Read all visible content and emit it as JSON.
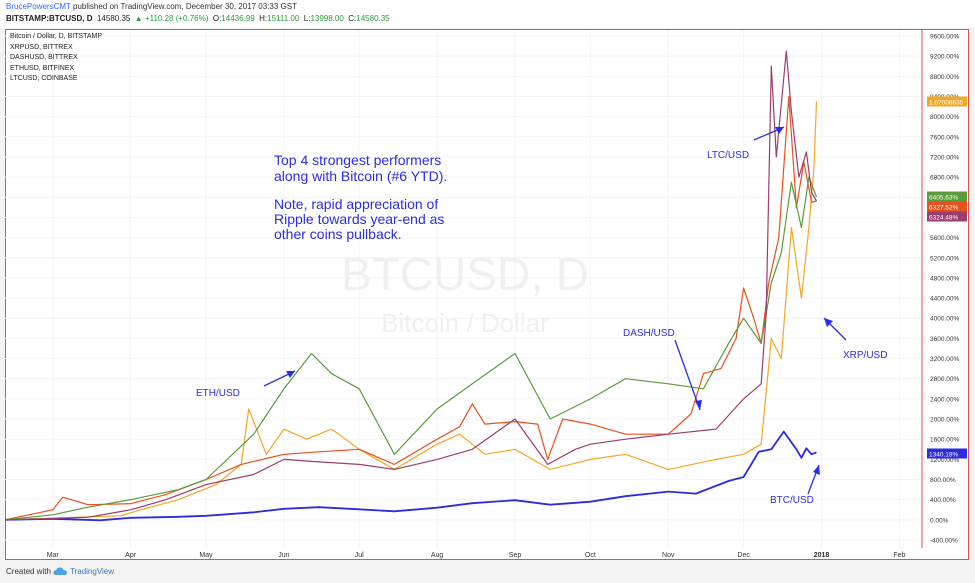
{
  "header": {
    "author": "BrucePowersCMT",
    "published": "published on TradingView.com, December 30, 2017 03:33 GST",
    "symbol": "BITSTAMP:BTCUSD, D",
    "last": "14580.35",
    "change": "▲ +110.28 (+0.76%)",
    "open_label": "O:",
    "open": "14436.99",
    "high_label": "H:",
    "high": "15111.00",
    "low_label": "L:",
    "low": "13998.00",
    "close_label": "C:",
    "close": "14580.35"
  },
  "legend": [
    "Bitcoin / Dollar, D, BITSTAMP",
    "XRPUSD, BITTREX",
    "DASHUSD, BITTREX",
    "ETHUSD, BITFINEX",
    "LTCUSD, COINBASE"
  ],
  "watermark": {
    "symbol": "BTCUSD, D",
    "name": "Bitcoin / Dollar"
  },
  "annotations": {
    "main_text": [
      "Top 4 strongest performers",
      "along with Bitcoin (#6 YTD).",
      "",
      "Note, rapid appreciation of",
      "Ripple towards year-end as",
      "other coins pullback."
    ],
    "eth": "ETH/USD",
    "dash": "DASH/USD",
    "ltc": "LTC/USD",
    "xrp": "XRP/USD",
    "btc": "BTC/USD"
  },
  "footer": {
    "created": "Created with",
    "brand": "TradingView"
  },
  "colors": {
    "btc": "#2b2be0",
    "xrp": "#f5a623",
    "dash": "#e8501c",
    "eth": "#5b9b3a",
    "ltc": "#9b3d6e",
    "annotation": "#2c2ce0"
  },
  "chart_data": {
    "type": "line",
    "title": "Bitcoin / Dollar, D, BITSTAMP",
    "xlabel": "",
    "ylabel": "",
    "ylim": [
      -400,
      9600
    ],
    "y_unit": "%",
    "y_ticks": [
      9600,
      9200,
      8800,
      8400,
      8000,
      7600,
      7200,
      6800,
      6400,
      6000,
      5600,
      5200,
      4800,
      4400,
      4000,
      3600,
      3200,
      2800,
      2400,
      2000,
      1600,
      1200,
      800,
      400,
      0,
      -400
    ],
    "y_tick_labels": [
      "9600.00%",
      "9200.00%",
      "8800.00%",
      "8400.00%",
      "8000.00%",
      "7600.00%",
      "7200.00%",
      "6800.00%",
      "6400.00%",
      "6000.00%",
      "5600.00%",
      "5200.00%",
      "4800.00%",
      "4400.00%",
      "4000.00%",
      "3600.00%",
      "3200.00%",
      "2800.00%",
      "2400.00%",
      "2000.00%",
      "1600.00%",
      "1200.00%",
      "800.00%",
      "400.00%",
      "0.00%",
      "-400.00%"
    ],
    "x_ticks": [
      {
        "label": "Mar",
        "date": "2017-03-01"
      },
      {
        "label": "Apr",
        "date": "2017-04-01"
      },
      {
        "label": "May",
        "date": "2017-05-01"
      },
      {
        "label": "Jun",
        "date": "2017-06-01"
      },
      {
        "label": "Jul",
        "date": "2017-07-01"
      },
      {
        "label": "Aug",
        "date": "2017-08-01"
      },
      {
        "label": "Sep",
        "date": "2017-09-01"
      },
      {
        "label": "Oct",
        "date": "2017-10-01"
      },
      {
        "label": "Nov",
        "date": "2017-11-01"
      },
      {
        "label": "Dec",
        "date": "2017-12-01"
      },
      {
        "label": "2018",
        "date": "2018-01-01"
      },
      {
        "label": "Feb",
        "date": "2018-02-01"
      }
    ],
    "x_range": [
      "2017-02-10",
      "2018-02-10"
    ],
    "value_labels": [
      {
        "series": "XRPUSD",
        "text": "1.07008635"
      },
      {
        "series": "ETHUSD",
        "text": "6405.63%"
      },
      {
        "series": "DASHUSD",
        "text": "6327.52%"
      },
      {
        "series": "LTCUSD",
        "text": "6324.48%"
      },
      {
        "series": "BTCUSD",
        "text": "1340.18%"
      }
    ],
    "series": [
      {
        "name": "BTCUSD",
        "color": "#2b2be0",
        "points": [
          [
            "2017-02-10",
            0
          ],
          [
            "2017-03-01",
            20
          ],
          [
            "2017-03-20",
            -10
          ],
          [
            "2017-04-01",
            40
          ],
          [
            "2017-04-20",
            60
          ],
          [
            "2017-05-01",
            80
          ],
          [
            "2017-05-20",
            150
          ],
          [
            "2017-06-01",
            220
          ],
          [
            "2017-06-15",
            250
          ],
          [
            "2017-07-01",
            210
          ],
          [
            "2017-07-15",
            170
          ],
          [
            "2017-08-01",
            240
          ],
          [
            "2017-08-15",
            330
          ],
          [
            "2017-09-01",
            390
          ],
          [
            "2017-09-15",
            300
          ],
          [
            "2017-10-01",
            360
          ],
          [
            "2017-10-15",
            470
          ],
          [
            "2017-11-01",
            560
          ],
          [
            "2017-11-12",
            520
          ],
          [
            "2017-11-25",
            770
          ],
          [
            "2017-12-01",
            850
          ],
          [
            "2017-12-07",
            1350
          ],
          [
            "2017-12-12",
            1400
          ],
          [
            "2017-12-17",
            1750
          ],
          [
            "2017-12-22",
            1400
          ],
          [
            "2017-12-24",
            1230
          ],
          [
            "2017-12-26",
            1420
          ],
          [
            "2017-12-28",
            1300
          ],
          [
            "2017-12-30",
            1340
          ]
        ]
      },
      {
        "name": "XRPUSD",
        "color": "#f5a623",
        "points": [
          [
            "2017-02-10",
            0
          ],
          [
            "2017-03-15",
            60
          ],
          [
            "2017-03-28",
            80
          ],
          [
            "2017-04-05",
            200
          ],
          [
            "2017-04-20",
            400
          ],
          [
            "2017-05-05",
            700
          ],
          [
            "2017-05-15",
            1100
          ],
          [
            "2017-05-18",
            2200
          ],
          [
            "2017-05-25",
            1300
          ],
          [
            "2017-06-01",
            1800
          ],
          [
            "2017-06-10",
            1600
          ],
          [
            "2017-06-20",
            1800
          ],
          [
            "2017-07-01",
            1400
          ],
          [
            "2017-07-15",
            1000
          ],
          [
            "2017-08-01",
            1500
          ],
          [
            "2017-08-10",
            1700
          ],
          [
            "2017-08-20",
            1300
          ],
          [
            "2017-09-01",
            1400
          ],
          [
            "2017-09-15",
            1000
          ],
          [
            "2017-10-01",
            1200
          ],
          [
            "2017-10-15",
            1300
          ],
          [
            "2017-11-01",
            1000
          ],
          [
            "2017-11-20",
            1200
          ],
          [
            "2017-12-01",
            1300
          ],
          [
            "2017-12-08",
            1500
          ],
          [
            "2017-12-12",
            3600
          ],
          [
            "2017-12-16",
            3200
          ],
          [
            "2017-12-20",
            5800
          ],
          [
            "2017-12-24",
            4400
          ],
          [
            "2017-12-27",
            5800
          ],
          [
            "2017-12-29",
            7000
          ],
          [
            "2017-12-30",
            8300
          ]
        ]
      },
      {
        "name": "DASHUSD",
        "color": "#e8501c",
        "points": [
          [
            "2017-02-10",
            0
          ],
          [
            "2017-03-01",
            200
          ],
          [
            "2017-03-05",
            450
          ],
          [
            "2017-03-15",
            300
          ],
          [
            "2017-04-01",
            320
          ],
          [
            "2017-04-15",
            500
          ],
          [
            "2017-05-01",
            800
          ],
          [
            "2017-05-15",
            1100
          ],
          [
            "2017-06-01",
            1300
          ],
          [
            "2017-06-15",
            1350
          ],
          [
            "2017-07-01",
            1400
          ],
          [
            "2017-07-15",
            1100
          ],
          [
            "2017-08-01",
            1600
          ],
          [
            "2017-08-10",
            1850
          ],
          [
            "2017-08-15",
            2300
          ],
          [
            "2017-08-20",
            1900
          ],
          [
            "2017-09-01",
            1950
          ],
          [
            "2017-09-10",
            1900
          ],
          [
            "2017-09-14",
            1200
          ],
          [
            "2017-09-20",
            2000
          ],
          [
            "2017-10-01",
            1900
          ],
          [
            "2017-10-15",
            1700
          ],
          [
            "2017-11-01",
            1700
          ],
          [
            "2017-11-10",
            2100
          ],
          [
            "2017-11-15",
            2900
          ],
          [
            "2017-11-22",
            3000
          ],
          [
            "2017-11-28",
            3600
          ],
          [
            "2017-12-01",
            4600
          ],
          [
            "2017-12-05",
            4000
          ],
          [
            "2017-12-08",
            3500
          ],
          [
            "2017-12-11",
            4700
          ],
          [
            "2017-12-15",
            5600
          ],
          [
            "2017-12-19",
            8400
          ],
          [
            "2017-12-22",
            6200
          ],
          [
            "2017-12-25",
            7100
          ],
          [
            "2017-12-28",
            6300
          ],
          [
            "2017-12-30",
            6327
          ]
        ]
      },
      {
        "name": "ETHUSD",
        "color": "#5b9b3a",
        "points": [
          [
            "2017-02-10",
            0
          ],
          [
            "2017-03-01",
            100
          ],
          [
            "2017-03-15",
            250
          ],
          [
            "2017-04-01",
            400
          ],
          [
            "2017-04-20",
            600
          ],
          [
            "2017-05-01",
            800
          ],
          [
            "2017-05-20",
            1700
          ],
          [
            "2017-06-01",
            2600
          ],
          [
            "2017-06-12",
            3300
          ],
          [
            "2017-06-20",
            2900
          ],
          [
            "2017-07-01",
            2600
          ],
          [
            "2017-07-15",
            1300
          ],
          [
            "2017-08-01",
            2200
          ],
          [
            "2017-08-15",
            2700
          ],
          [
            "2017-09-01",
            3300
          ],
          [
            "2017-09-15",
            2000
          ],
          [
            "2017-10-01",
            2400
          ],
          [
            "2017-10-15",
            2800
          ],
          [
            "2017-11-01",
            2700
          ],
          [
            "2017-11-15",
            2600
          ],
          [
            "2017-11-25",
            3500
          ],
          [
            "2017-12-01",
            4000
          ],
          [
            "2017-12-08",
            3500
          ],
          [
            "2017-12-12",
            4700
          ],
          [
            "2017-12-16",
            5300
          ],
          [
            "2017-12-20",
            6700
          ],
          [
            "2017-12-24",
            5800
          ],
          [
            "2017-12-27",
            6800
          ],
          [
            "2017-12-30",
            6405
          ]
        ]
      },
      {
        "name": "LTCUSD",
        "color": "#9b3d6e",
        "points": [
          [
            "2017-02-10",
            0
          ],
          [
            "2017-03-15",
            50
          ],
          [
            "2017-04-01",
            200
          ],
          [
            "2017-04-15",
            400
          ],
          [
            "2017-05-01",
            700
          ],
          [
            "2017-05-20",
            900
          ],
          [
            "2017-06-01",
            1200
          ],
          [
            "2017-06-15",
            1150
          ],
          [
            "2017-07-01",
            1100
          ],
          [
            "2017-07-15",
            1000
          ],
          [
            "2017-08-01",
            1200
          ],
          [
            "2017-08-15",
            1400
          ],
          [
            "2017-09-01",
            2000
          ],
          [
            "2017-09-14",
            1100
          ],
          [
            "2017-09-25",
            1400
          ],
          [
            "2017-10-01",
            1500
          ],
          [
            "2017-10-15",
            1600
          ],
          [
            "2017-11-01",
            1700
          ],
          [
            "2017-11-20",
            1800
          ],
          [
            "2017-12-01",
            2400
          ],
          [
            "2017-12-08",
            2700
          ],
          [
            "2017-12-10",
            4100
          ],
          [
            "2017-12-12",
            9000
          ],
          [
            "2017-12-14",
            7200
          ],
          [
            "2017-12-18",
            9300
          ],
          [
            "2017-12-20",
            8100
          ],
          [
            "2017-12-23",
            6800
          ],
          [
            "2017-12-26",
            7300
          ],
          [
            "2017-12-28",
            6500
          ],
          [
            "2017-12-30",
            6324
          ]
        ]
      }
    ]
  }
}
